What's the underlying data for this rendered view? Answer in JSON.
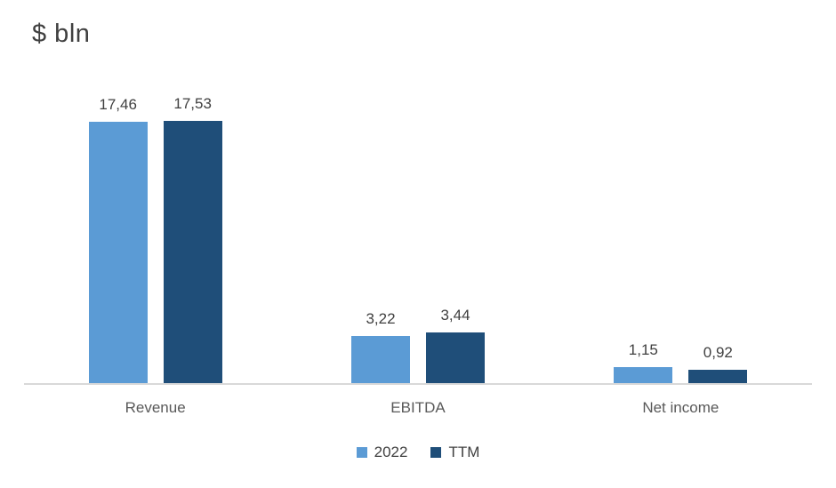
{
  "chart_data": {
    "type": "bar",
    "title": "$ bln",
    "categories": [
      "Revenue",
      "EBITDA",
      "Net income"
    ],
    "series": [
      {
        "name": "2022",
        "color": "#5B9BD5",
        "values": [
          17.46,
          3.22,
          1.15
        ],
        "labels": [
          "17,46",
          "3,22",
          "1,15"
        ]
      },
      {
        "name": "TTM",
        "color": "#1F4E79",
        "values": [
          17.53,
          3.44,
          0.92
        ],
        "labels": [
          "17,53",
          "3,44",
          "0,92"
        ]
      }
    ],
    "xlabel": "",
    "ylabel": "",
    "ylim": [
      0,
      18
    ],
    "grid": false,
    "value_labels_shown": true,
    "decimal_separator": ",",
    "legend_position": "bottom",
    "axis_line_color": "#D9D9D9",
    "title_color": "#404040",
    "label_color": "#404040",
    "category_label_color": "#595959"
  }
}
